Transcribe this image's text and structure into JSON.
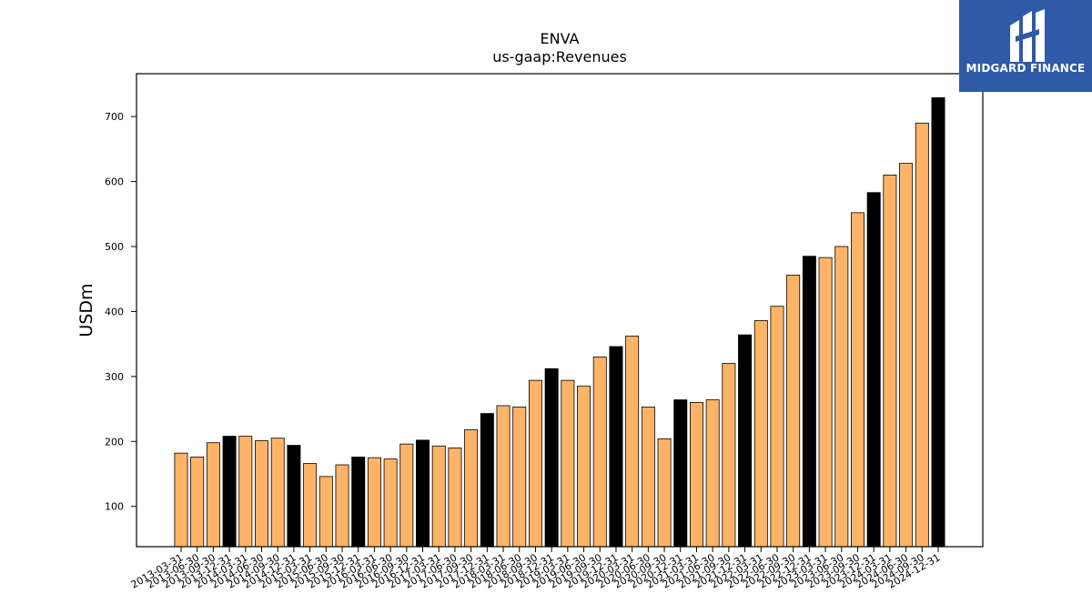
{
  "chart_data": {
    "type": "bar",
    "title": "ENVA",
    "subtitle": "us-gaap:Revenues",
    "ylabel": "USDm",
    "xlabel": "",
    "ylim": [
      38,
      766
    ],
    "yticks": [
      100,
      200,
      300,
      400,
      500,
      600,
      700
    ],
    "categories": [
      "2013-03-31",
      "2013-06-30",
      "2013-09-30",
      "2013-12-31",
      "2014-03-31",
      "2014-06-30",
      "2014-09-30",
      "2014-12-31",
      "2015-03-31",
      "2015-06-30",
      "2015-09-30",
      "2015-12-31",
      "2016-03-31",
      "2016-06-30",
      "2016-09-30",
      "2016-12-31",
      "2017-03-31",
      "2017-06-30",
      "2017-09-30",
      "2017-12-31",
      "2018-03-31",
      "2018-06-30",
      "2018-09-30",
      "2018-12-31",
      "2019-03-31",
      "2019-06-30",
      "2019-09-30",
      "2019-12-31",
      "2020-03-31",
      "2020-06-30",
      "2020-09-30",
      "2020-12-31",
      "2021-03-31",
      "2021-06-30",
      "2021-09-30",
      "2021-12-31",
      "2022-03-31",
      "2022-06-30",
      "2022-09-30",
      "2022-12-31",
      "2023-03-31",
      "2023-06-30",
      "2023-09-30",
      "2023-12-31",
      "2024-03-31",
      "2024-06-30",
      "2024-09-30",
      "2024-12-31"
    ],
    "values": [
      182,
      176,
      198,
      208,
      208,
      201,
      205,
      194,
      166,
      146,
      164,
      176,
      175,
      173,
      196,
      202,
      193,
      190,
      218,
      243,
      255,
      253,
      294,
      312,
      294,
      285,
      330,
      346,
      362,
      253,
      204,
      264,
      260,
      264,
      320,
      364,
      386,
      408,
      456,
      485,
      483,
      500,
      552,
      583,
      610,
      628,
      690,
      729
    ],
    "bar_colors": {
      "quarter": "#ffb366",
      "year_end": "#000000",
      "edge": "#000000"
    },
    "grid": false,
    "legend": "none"
  },
  "logo": {
    "text": "MIDGARD FINANCE",
    "background": "#2e5aa8",
    "foreground": "#ffffff"
  }
}
